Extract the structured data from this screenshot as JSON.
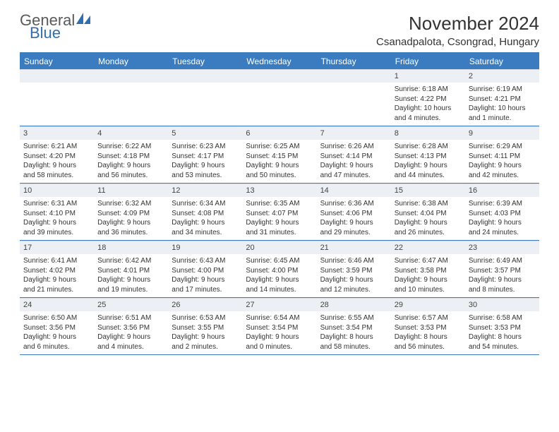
{
  "brand": {
    "word1": "General",
    "word2": "Blue",
    "accent_color": "#2f6fb0",
    "text_color": "#5a5a5a"
  },
  "header": {
    "title": "November 2024",
    "location": "Csanadpalota, Csongrad, Hungary"
  },
  "colors": {
    "bar": "#3a7cbf",
    "daynum_bg": "#eceff3",
    "text": "#333333",
    "page_bg": "#ffffff"
  },
  "weekdays": [
    "Sunday",
    "Monday",
    "Tuesday",
    "Wednesday",
    "Thursday",
    "Friday",
    "Saturday"
  ],
  "weeks": [
    [
      {
        "num": "",
        "lines": [
          "",
          "",
          "",
          ""
        ]
      },
      {
        "num": "",
        "lines": [
          "",
          "",
          "",
          ""
        ]
      },
      {
        "num": "",
        "lines": [
          "",
          "",
          "",
          ""
        ]
      },
      {
        "num": "",
        "lines": [
          "",
          "",
          "",
          ""
        ]
      },
      {
        "num": "",
        "lines": [
          "",
          "",
          "",
          ""
        ]
      },
      {
        "num": "1",
        "lines": [
          "Sunrise: 6:18 AM",
          "Sunset: 4:22 PM",
          "Daylight: 10 hours",
          "and 4 minutes."
        ]
      },
      {
        "num": "2",
        "lines": [
          "Sunrise: 6:19 AM",
          "Sunset: 4:21 PM",
          "Daylight: 10 hours",
          "and 1 minute."
        ]
      }
    ],
    [
      {
        "num": "3",
        "lines": [
          "Sunrise: 6:21 AM",
          "Sunset: 4:20 PM",
          "Daylight: 9 hours",
          "and 58 minutes."
        ]
      },
      {
        "num": "4",
        "lines": [
          "Sunrise: 6:22 AM",
          "Sunset: 4:18 PM",
          "Daylight: 9 hours",
          "and 56 minutes."
        ]
      },
      {
        "num": "5",
        "lines": [
          "Sunrise: 6:23 AM",
          "Sunset: 4:17 PM",
          "Daylight: 9 hours",
          "and 53 minutes."
        ]
      },
      {
        "num": "6",
        "lines": [
          "Sunrise: 6:25 AM",
          "Sunset: 4:15 PM",
          "Daylight: 9 hours",
          "and 50 minutes."
        ]
      },
      {
        "num": "7",
        "lines": [
          "Sunrise: 6:26 AM",
          "Sunset: 4:14 PM",
          "Daylight: 9 hours",
          "and 47 minutes."
        ]
      },
      {
        "num": "8",
        "lines": [
          "Sunrise: 6:28 AM",
          "Sunset: 4:13 PM",
          "Daylight: 9 hours",
          "and 44 minutes."
        ]
      },
      {
        "num": "9",
        "lines": [
          "Sunrise: 6:29 AM",
          "Sunset: 4:11 PM",
          "Daylight: 9 hours",
          "and 42 minutes."
        ]
      }
    ],
    [
      {
        "num": "10",
        "lines": [
          "Sunrise: 6:31 AM",
          "Sunset: 4:10 PM",
          "Daylight: 9 hours",
          "and 39 minutes."
        ]
      },
      {
        "num": "11",
        "lines": [
          "Sunrise: 6:32 AM",
          "Sunset: 4:09 PM",
          "Daylight: 9 hours",
          "and 36 minutes."
        ]
      },
      {
        "num": "12",
        "lines": [
          "Sunrise: 6:34 AM",
          "Sunset: 4:08 PM",
          "Daylight: 9 hours",
          "and 34 minutes."
        ]
      },
      {
        "num": "13",
        "lines": [
          "Sunrise: 6:35 AM",
          "Sunset: 4:07 PM",
          "Daylight: 9 hours",
          "and 31 minutes."
        ]
      },
      {
        "num": "14",
        "lines": [
          "Sunrise: 6:36 AM",
          "Sunset: 4:06 PM",
          "Daylight: 9 hours",
          "and 29 minutes."
        ]
      },
      {
        "num": "15",
        "lines": [
          "Sunrise: 6:38 AM",
          "Sunset: 4:04 PM",
          "Daylight: 9 hours",
          "and 26 minutes."
        ]
      },
      {
        "num": "16",
        "lines": [
          "Sunrise: 6:39 AM",
          "Sunset: 4:03 PM",
          "Daylight: 9 hours",
          "and 24 minutes."
        ]
      }
    ],
    [
      {
        "num": "17",
        "lines": [
          "Sunrise: 6:41 AM",
          "Sunset: 4:02 PM",
          "Daylight: 9 hours",
          "and 21 minutes."
        ]
      },
      {
        "num": "18",
        "lines": [
          "Sunrise: 6:42 AM",
          "Sunset: 4:01 PM",
          "Daylight: 9 hours",
          "and 19 minutes."
        ]
      },
      {
        "num": "19",
        "lines": [
          "Sunrise: 6:43 AM",
          "Sunset: 4:00 PM",
          "Daylight: 9 hours",
          "and 17 minutes."
        ]
      },
      {
        "num": "20",
        "lines": [
          "Sunrise: 6:45 AM",
          "Sunset: 4:00 PM",
          "Daylight: 9 hours",
          "and 14 minutes."
        ]
      },
      {
        "num": "21",
        "lines": [
          "Sunrise: 6:46 AM",
          "Sunset: 3:59 PM",
          "Daylight: 9 hours",
          "and 12 minutes."
        ]
      },
      {
        "num": "22",
        "lines": [
          "Sunrise: 6:47 AM",
          "Sunset: 3:58 PM",
          "Daylight: 9 hours",
          "and 10 minutes."
        ]
      },
      {
        "num": "23",
        "lines": [
          "Sunrise: 6:49 AM",
          "Sunset: 3:57 PM",
          "Daylight: 9 hours",
          "and 8 minutes."
        ]
      }
    ],
    [
      {
        "num": "24",
        "lines": [
          "Sunrise: 6:50 AM",
          "Sunset: 3:56 PM",
          "Daylight: 9 hours",
          "and 6 minutes."
        ]
      },
      {
        "num": "25",
        "lines": [
          "Sunrise: 6:51 AM",
          "Sunset: 3:56 PM",
          "Daylight: 9 hours",
          "and 4 minutes."
        ]
      },
      {
        "num": "26",
        "lines": [
          "Sunrise: 6:53 AM",
          "Sunset: 3:55 PM",
          "Daylight: 9 hours",
          "and 2 minutes."
        ]
      },
      {
        "num": "27",
        "lines": [
          "Sunrise: 6:54 AM",
          "Sunset: 3:54 PM",
          "Daylight: 9 hours",
          "and 0 minutes."
        ]
      },
      {
        "num": "28",
        "lines": [
          "Sunrise: 6:55 AM",
          "Sunset: 3:54 PM",
          "Daylight: 8 hours",
          "and 58 minutes."
        ]
      },
      {
        "num": "29",
        "lines": [
          "Sunrise: 6:57 AM",
          "Sunset: 3:53 PM",
          "Daylight: 8 hours",
          "and 56 minutes."
        ]
      },
      {
        "num": "30",
        "lines": [
          "Sunrise: 6:58 AM",
          "Sunset: 3:53 PM",
          "Daylight: 8 hours",
          "and 54 minutes."
        ]
      }
    ]
  ]
}
